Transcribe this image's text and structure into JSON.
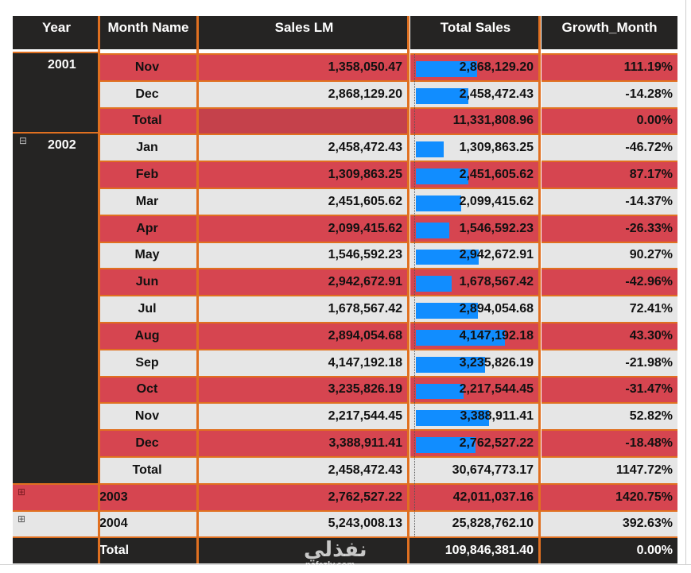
{
  "columns": [
    "Year",
    "Month Name",
    "Sales LM",
    "Total Sales",
    "Growth_Month"
  ],
  "colors": {
    "header_bg": "#252423",
    "row_red": "#d64550",
    "row_light": "#e6e6e6",
    "cell_border": "#e07020",
    "bar": "#118dff"
  },
  "bar_max": 4147192.18,
  "years": [
    {
      "year": "2001",
      "expander": "",
      "rows": [
        {
          "month": "Nov",
          "sales_lm": "1,358,050.47",
          "total_sales": "2,868,129.20",
          "growth": "111.19%",
          "value": 2868129.2,
          "style": "red"
        },
        {
          "month": "Dec",
          "sales_lm": "2,868,129.20",
          "total_sales": "2,458,472.43",
          "growth": "-14.28%",
          "value": 2458472.43,
          "style": "light"
        },
        {
          "month": "Total",
          "sales_lm": "",
          "total_sales": "11,331,808.96",
          "growth": "0.00%",
          "value": null,
          "style": "red"
        }
      ]
    },
    {
      "year": "2002",
      "expander": "⊟",
      "rows": [
        {
          "month": "Jan",
          "sales_lm": "2,458,472.43",
          "total_sales": "1,309,863.25",
          "growth": "-46.72%",
          "value": 1309863.25,
          "style": "light"
        },
        {
          "month": "Feb",
          "sales_lm": "1,309,863.25",
          "total_sales": "2,451,605.62",
          "growth": "87.17%",
          "value": 2451605.62,
          "style": "red"
        },
        {
          "month": "Mar",
          "sales_lm": "2,451,605.62",
          "total_sales": "2,099,415.62",
          "growth": "-14.37%",
          "value": 2099415.62,
          "style": "light"
        },
        {
          "month": "Apr",
          "sales_lm": "2,099,415.62",
          "total_sales": "1,546,592.23",
          "growth": "-26.33%",
          "value": 1546592.23,
          "style": "red"
        },
        {
          "month": "May",
          "sales_lm": "1,546,592.23",
          "total_sales": "2,942,672.91",
          "growth": "90.27%",
          "value": 2942672.91,
          "style": "light"
        },
        {
          "month": "Jun",
          "sales_lm": "2,942,672.91",
          "total_sales": "1,678,567.42",
          "growth": "-42.96%",
          "value": 1678567.42,
          "style": "red"
        },
        {
          "month": "Jul",
          "sales_lm": "1,678,567.42",
          "total_sales": "2,894,054.68",
          "growth": "72.41%",
          "value": 2894054.68,
          "style": "light"
        },
        {
          "month": "Aug",
          "sales_lm": "2,894,054.68",
          "total_sales": "4,147,192.18",
          "growth": "43.30%",
          "value": 4147192.18,
          "style": "red"
        },
        {
          "month": "Sep",
          "sales_lm": "4,147,192.18",
          "total_sales": "3,235,826.19",
          "growth": "-21.98%",
          "value": 3235826.19,
          "style": "light"
        },
        {
          "month": "Oct",
          "sales_lm": "3,235,826.19",
          "total_sales": "2,217,544.45",
          "growth": "-31.47%",
          "value": 2217544.45,
          "style": "red"
        },
        {
          "month": "Nov",
          "sales_lm": "2,217,544.45",
          "total_sales": "3,388,911.41",
          "growth": "52.82%",
          "value": 3388911.41,
          "style": "light"
        },
        {
          "month": "Dec",
          "sales_lm": "3,388,911.41",
          "total_sales": "2,762,527.22",
          "growth": "-18.48%",
          "value": 2762527.22,
          "style": "red"
        },
        {
          "month": "Total",
          "sales_lm": "2,458,472.43",
          "total_sales": "30,674,773.17",
          "growth": "1147.72%",
          "value": null,
          "style": "light"
        }
      ]
    }
  ],
  "collapsed_years": [
    {
      "year": "2003",
      "expander": "⊞",
      "sales_lm": "2,762,527.22",
      "total_sales": "42,011,037.16",
      "growth": "1420.75%",
      "style": "red"
    },
    {
      "year": "2004",
      "expander": "⊞",
      "sales_lm": "5,243,008.13",
      "total_sales": "25,828,762.10",
      "growth": "392.63%",
      "style": "light"
    }
  ],
  "grand_total": {
    "label": "Total",
    "sales_lm": "",
    "total_sales": "109,846,381.40",
    "growth": "0.00%"
  },
  "watermark": {
    "brand": "نفذلي",
    "domain": "nafezly.com"
  }
}
